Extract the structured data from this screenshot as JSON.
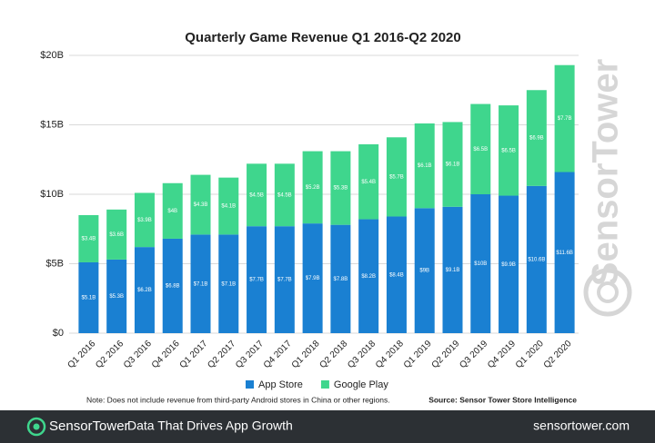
{
  "chart_data": {
    "type": "bar",
    "stacked": true,
    "title": "Quarterly Game Revenue Q1 2016-Q2 2020",
    "categories": [
      "Q1 2016",
      "Q2 2016",
      "Q3 2016",
      "Q4 2016",
      "Q1 2017",
      "Q2 2017",
      "Q3 2017",
      "Q4 2017",
      "Q1 2018",
      "Q2 2018",
      "Q3 2018",
      "Q4 2018",
      "Q1 2019",
      "Q2 2019",
      "Q3 2019",
      "Q4 2019",
      "Q1 2020",
      "Q2 2020"
    ],
    "series": [
      {
        "name": "App Store",
        "color": "#1a80d2",
        "values": [
          5.1,
          5.3,
          6.2,
          6.8,
          7.1,
          7.1,
          7.7,
          7.7,
          7.9,
          7.8,
          8.2,
          8.4,
          9,
          9.1,
          10,
          9.9,
          10.6,
          11.6
        ],
        "value_labels": [
          "$5.1B",
          "$5.3B",
          "$6.2B",
          "$6.8B",
          "$7.1B",
          "$7.1B",
          "$7.7B",
          "$7.7B",
          "$7.9B",
          "$7.8B",
          "$8.2B",
          "$8.4B",
          "$9B",
          "$9.1B",
          "$10B",
          "$9.9B",
          "$10.6B",
          "$11.6B"
        ]
      },
      {
        "name": "Google Play",
        "color": "#3fd68d",
        "values": [
          3.4,
          3.6,
          3.9,
          4,
          4.3,
          4.1,
          4.5,
          4.5,
          5.2,
          5.3,
          5.4,
          5.7,
          6.1,
          6.1,
          6.5,
          6.5,
          6.9,
          7.7
        ],
        "value_labels": [
          "$3.4B",
          "$3.6B",
          "$3.9B",
          "$4B",
          "$4.3B",
          "$4.1B",
          "$4.5B",
          "$4.5B",
          "$5.2B",
          "$5.3B",
          "$5.4B",
          "$5.7B",
          "$6.1B",
          "$6.1B",
          "$6.5B",
          "$6.5B",
          "$6.9B",
          "$7.7B"
        ]
      }
    ],
    "ylim": [
      0,
      20
    ],
    "yticks": [
      {
        "value": 0,
        "label": "$0"
      },
      {
        "value": 5,
        "label": "$5B"
      },
      {
        "value": 10,
        "label": "$10B"
      },
      {
        "value": 15,
        "label": "$15B"
      },
      {
        "value": 20,
        "label": "$20B"
      }
    ],
    "grid": true,
    "legend": "bottom",
    "note": "Note: Does not include revenue from third-party Android stores in China or other regions.",
    "source": "Source: Sensor Tower Store Intelligence"
  },
  "watermark": "SensorTower",
  "footer": {
    "brand": "SensorTower",
    "tagline": "Data That Drives App Growth",
    "url": "sensortower.com"
  }
}
